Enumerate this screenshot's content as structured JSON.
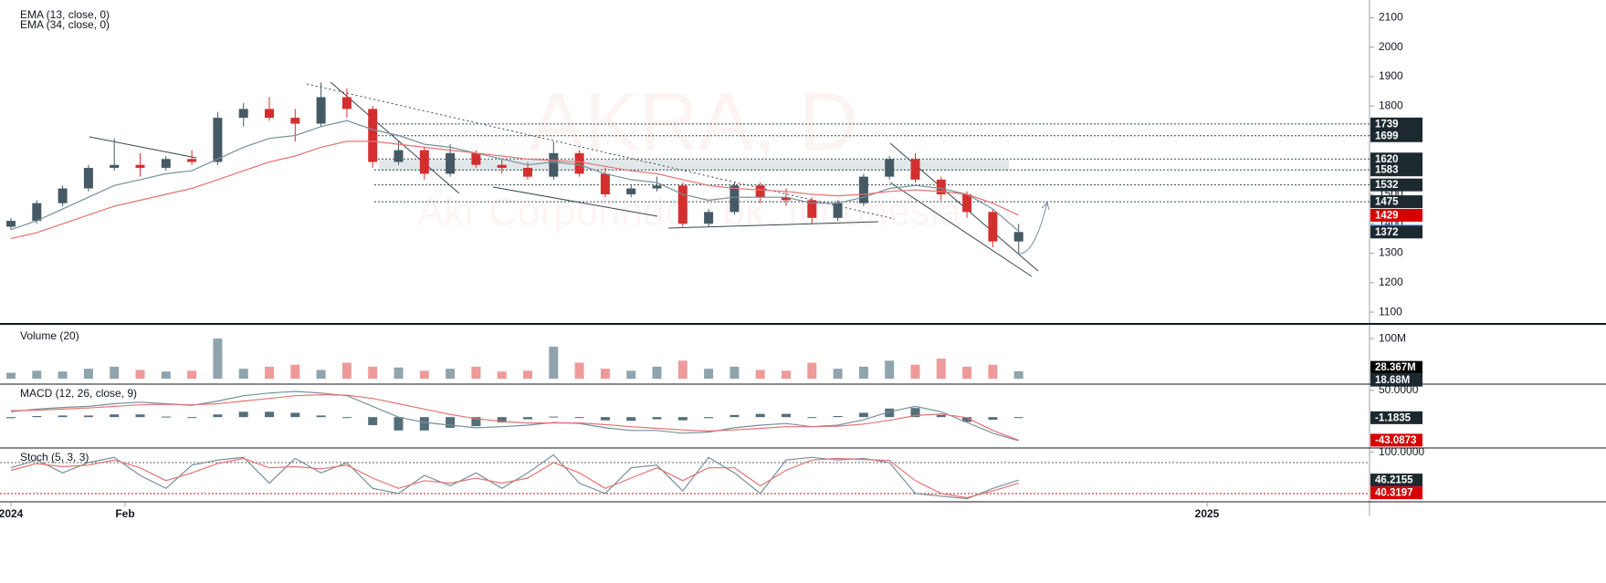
{
  "chart_data": [
    {
      "type": "candlestick",
      "watermark": "AKRA, D",
      "subtitle": "Akr Corporindo Tbk, Indonesia",
      "x_labels": [
        "2024",
        "Feb",
        "2025"
      ],
      "up_color": "#455a64",
      "down_color": "#d32f2f",
      "open": [
        1390,
        1410,
        1470,
        1520,
        1590,
        1600,
        1590,
        1620,
        1610,
        1760,
        1790,
        1760,
        1740,
        1830,
        1790,
        1610,
        1650,
        1570,
        1640,
        1600,
        1590,
        1560,
        1640,
        1570,
        1500,
        1520,
        1530,
        1400,
        1440,
        1530,
        1490,
        1480,
        1420,
        1470,
        1560,
        1620,
        1550,
        1500,
        1440,
        1340
      ],
      "high": [
        1420,
        1480,
        1530,
        1600,
        1690,
        1640,
        1630,
        1650,
        1780,
        1810,
        1830,
        1790,
        1880,
        1860,
        1800,
        1680,
        1660,
        1670,
        1650,
        1620,
        1610,
        1680,
        1650,
        1590,
        1530,
        1560,
        1540,
        1450,
        1540,
        1540,
        1520,
        1490,
        1480,
        1570,
        1630,
        1640,
        1560,
        1510,
        1450,
        1400
      ],
      "low": [
        1380,
        1400,
        1460,
        1510,
        1580,
        1560,
        1580,
        1600,
        1600,
        1730,
        1750,
        1680,
        1730,
        1760,
        1590,
        1600,
        1550,
        1560,
        1590,
        1570,
        1550,
        1550,
        1560,
        1490,
        1490,
        1510,
        1390,
        1390,
        1430,
        1470,
        1460,
        1400,
        1410,
        1460,
        1550,
        1540,
        1480,
        1420,
        1320,
        1300
      ],
      "close": [
        1410,
        1470,
        1520,
        1590,
        1600,
        1590,
        1620,
        1610,
        1760,
        1790,
        1760,
        1740,
        1830,
        1790,
        1610,
        1650,
        1570,
        1640,
        1600,
        1590,
        1560,
        1640,
        1570,
        1500,
        1520,
        1530,
        1400,
        1440,
        1530,
        1490,
        1480,
        1420,
        1470,
        1560,
        1620,
        1550,
        1500,
        1440,
        1340,
        1372
      ],
      "series": [
        {
          "name": "EMA (13, close, 0)",
          "color": "#78909c",
          "values": [
            1380,
            1410,
            1450,
            1490,
            1530,
            1550,
            1570,
            1580,
            1620,
            1660,
            1690,
            1700,
            1730,
            1750,
            1720,
            1700,
            1670,
            1660,
            1640,
            1620,
            1600,
            1610,
            1600,
            1570,
            1550,
            1540,
            1500,
            1480,
            1490,
            1490,
            1490,
            1470,
            1470,
            1490,
            1520,
            1530,
            1520,
            1500,
            1450,
            1375
          ]
        },
        {
          "name": "EMA (34, close, 0)",
          "color": "#e57373",
          "values": [
            1350,
            1370,
            1400,
            1430,
            1460,
            1480,
            1500,
            1520,
            1550,
            1580,
            1610,
            1630,
            1660,
            1680,
            1680,
            1670,
            1660,
            1650,
            1640,
            1630,
            1620,
            1615,
            1610,
            1595,
            1580,
            1570,
            1550,
            1530,
            1520,
            1515,
            1510,
            1500,
            1495,
            1500,
            1510,
            1515,
            1510,
            1500,
            1470,
            1429
          ]
        }
      ],
      "ylim": [
        1060,
        2160
      ],
      "yticks": [
        1100,
        1200,
        1300,
        1400,
        1500,
        1600,
        1700,
        1800,
        1900,
        2000,
        2100
      ],
      "levels": [
        1739,
        1699,
        1620,
        1583,
        1532,
        1475,
        1429,
        1375,
        1372
      ],
      "level_colors": [
        "#1c2a30",
        "#1c2a30",
        "#1c2a30",
        "#1c2a30",
        "#1c2a30",
        "#1c2a30",
        "#d50000",
        "#5c8ff0",
        "#1c2a30"
      ],
      "level_lines": [
        true,
        true,
        true,
        true,
        true,
        true,
        false,
        false,
        false
      ]
    },
    {
      "type": "bar",
      "title": "Volume (20)",
      "values": [
        15,
        20,
        18,
        25,
        30,
        22,
        18,
        20,
        100,
        25,
        30,
        35,
        22,
        40,
        30,
        28,
        20,
        25,
        30,
        18,
        20,
        80,
        40,
        25,
        20,
        30,
        45,
        25,
        30,
        22,
        20,
        40,
        25,
        30,
        45,
        35,
        50,
        30,
        35,
        18.68
      ],
      "up_color": "#90a4ae",
      "down_color": "#ef9a9a",
      "ylim": [
        -11,
        132
      ],
      "yticks": [
        {
          "value": 100,
          "label": "100M"
        }
      ],
      "last_values": [
        {
          "value": 28.367,
          "label": "28.367M"
        },
        {
          "value": 18.68,
          "label": "18.68M"
        }
      ],
      "last_colors": [
        "#000000",
        "#1c2a30"
      ]
    },
    {
      "type": "line",
      "title": "MACD (12, 26, close, 9)",
      "histogram": [
        -2,
        2,
        3,
        3,
        5,
        5,
        1,
        -1,
        5,
        10,
        10,
        8,
        3,
        -1,
        -15,
        -25,
        -25,
        -20,
        -17,
        -10,
        -4,
        1,
        -1,
        -6,
        -7,
        -4,
        -6,
        -2,
        4,
        6,
        6,
        0,
        2,
        8,
        16,
        17,
        4,
        -9,
        -5,
        -1
      ],
      "histogram_color": "#546e7a",
      "series": [
        {
          "name": "MACD",
          "color": "#78909c",
          "values": [
            10,
            15,
            18,
            20,
            25,
            28,
            25,
            22,
            30,
            40,
            45,
            48,
            45,
            40,
            20,
            0,
            -10,
            -15,
            -20,
            -18,
            -15,
            -10,
            -12,
            -20,
            -25,
            -25,
            -30,
            -28,
            -20,
            -15,
            -12,
            -18,
            -15,
            -5,
            10,
            20,
            10,
            -10,
            -30,
            -44
          ]
        },
        {
          "name": "Signal",
          "color": "#e57373",
          "values": [
            12,
            13,
            15,
            17,
            20,
            23,
            24,
            23,
            25,
            30,
            35,
            40,
            42,
            41,
            35,
            25,
            15,
            5,
            -3,
            -8,
            -11,
            -11,
            -11,
            -14,
            -18,
            -21,
            -24,
            -26,
            -24,
            -21,
            -18,
            -18,
            -17,
            -13,
            -6,
            3,
            6,
            -1,
            -25,
            -43
          ]
        }
      ],
      "ylim": [
        -56,
        60
      ],
      "yticks": [
        {
          "value": 50,
          "label": "50.0000"
        }
      ],
      "last_values": [
        -1.1835,
        -43.0873
      ],
      "last_colors": [
        "#1c2a30",
        "#d50000"
      ]
    },
    {
      "type": "line",
      "title": "Stoch (5, 3, 3)",
      "series": [
        {
          "name": "%K",
          "color": "#78909c",
          "values": [
            70,
            85,
            60,
            80,
            90,
            55,
            30,
            75,
            85,
            90,
            40,
            88,
            60,
            80,
            30,
            20,
            55,
            35,
            60,
            30,
            60,
            95,
            40,
            20,
            70,
            75,
            25,
            90,
            60,
            20,
            85,
            90,
            85,
            88,
            80,
            20,
            15,
            10,
            30,
            46
          ]
        },
        {
          "name": "%D",
          "color": "#e57373",
          "values": [
            65,
            78,
            72,
            75,
            85,
            70,
            45,
            60,
            78,
            88,
            70,
            72,
            68,
            75,
            50,
            30,
            45,
            40,
            50,
            40,
            50,
            80,
            60,
            30,
            50,
            70,
            45,
            70,
            70,
            35,
            65,
            85,
            88,
            86,
            84,
            45,
            20,
            12,
            25,
            40
          ]
        }
      ],
      "bands": [
        80,
        20
      ],
      "band_colors": [
        "#616161",
        "#b71c1c"
      ],
      "ylim": [
        4,
        106.5
      ],
      "yticks": [
        {
          "value": 100,
          "label": "100.0000"
        }
      ],
      "last_values": [
        46.2155,
        40.3197
      ],
      "last_colors": [
        "#1c2a30",
        "#d50000"
      ]
    }
  ]
}
